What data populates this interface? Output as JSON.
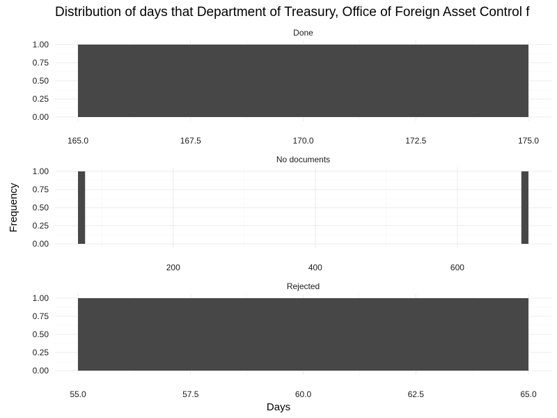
{
  "chart_data": {
    "type": "bar",
    "title": "Distribution of days that Department of Treasury, Office of Foreign Asset Control f",
    "xlabel": "Days",
    "ylabel": "Frequency",
    "grid": true,
    "legend": "none",
    "bar_color": "#474747",
    "facets": [
      {
        "label": "Done",
        "xlim": [
          165,
          175
        ],
        "ylim": [
          0,
          1
        ],
        "x_ticks": [
          165.0,
          167.5,
          170.0,
          172.5,
          175.0
        ],
        "x_tick_labels": [
          "165.0",
          "167.5",
          "170.0",
          "172.5",
          "175.0"
        ],
        "y_ticks": [
          0,
          0.25,
          0.5,
          0.75,
          1
        ],
        "y_tick_labels": [
          "0.00",
          "0.25",
          "0.50",
          "0.75",
          "1.00"
        ],
        "bins": [
          {
            "x_start": 165,
            "x_end": 175,
            "count": 1
          }
        ]
      },
      {
        "label": "No documents",
        "xlim": [
          66,
          700
        ],
        "ylim": [
          0,
          1
        ],
        "x_ticks": [
          200,
          400,
          600
        ],
        "x_tick_labels": [
          "200",
          "400",
          "600"
        ],
        "y_ticks": [
          0,
          0.25,
          0.5,
          0.75,
          1
        ],
        "y_tick_labels": [
          "0.00",
          "0.25",
          "0.50",
          "0.75",
          "1.00"
        ],
        "bins": [
          {
            "x_start": 66,
            "x_end": 76,
            "count": 1
          },
          {
            "x_start": 690,
            "x_end": 700,
            "count": 1
          }
        ]
      },
      {
        "label": "Rejected",
        "xlim": [
          55,
          65
        ],
        "ylim": [
          0,
          1
        ],
        "x_ticks": [
          55.0,
          57.5,
          60.0,
          62.5,
          65.0
        ],
        "x_tick_labels": [
          "55.0",
          "57.5",
          "60.0",
          "62.5",
          "65.0"
        ],
        "y_ticks": [
          0,
          0.25,
          0.5,
          0.75,
          1
        ],
        "y_tick_labels": [
          "0.00",
          "0.25",
          "0.50",
          "0.75",
          "1.00"
        ],
        "bins": [
          {
            "x_start": 55,
            "x_end": 65,
            "count": 1
          }
        ]
      }
    ]
  }
}
